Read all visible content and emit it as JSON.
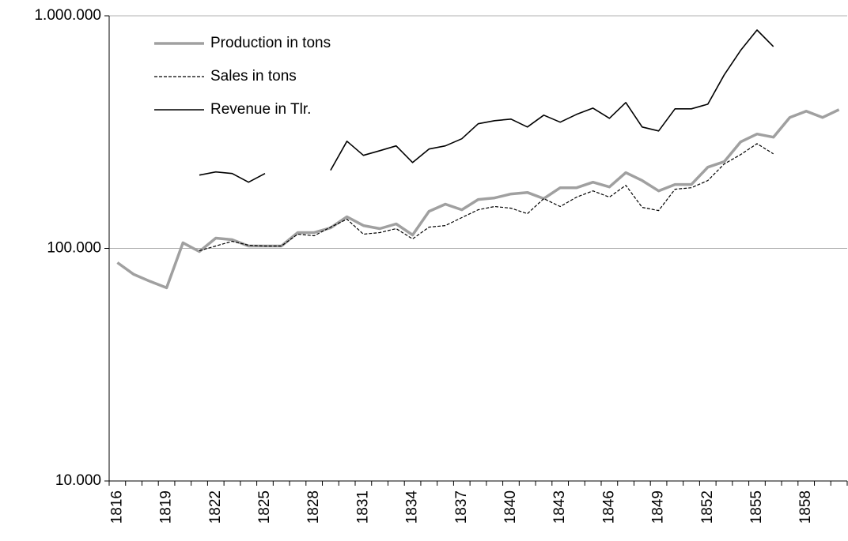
{
  "chart_data": {
    "type": "line",
    "log_scale": true,
    "grid": true,
    "legend": "top-left",
    "categories": [
      1816,
      null,
      null,
      1819,
      null,
      null,
      1822,
      null,
      null,
      1825,
      null,
      null,
      1828,
      null,
      null,
      1831,
      null,
      null,
      1834,
      null,
      null,
      1837,
      null,
      null,
      1840,
      null,
      null,
      1843,
      null,
      null,
      1846,
      null,
      null,
      1849,
      null,
      null,
      1852,
      null,
      null,
      1855,
      null,
      null,
      1858,
      null,
      null
    ],
    "ylim": [
      10000,
      1000000
    ],
    "yticks": [
      {
        "value": 10000,
        "label": "10.000"
      },
      {
        "value": 100000,
        "label": "100.000"
      },
      {
        "value": 1000000,
        "label": "1.000.000"
      }
    ],
    "series": [
      {
        "name": "Production in tons",
        "color": "#a0a0a0",
        "style": "solid",
        "values": [
          86900,
          77300,
          72100,
          67700,
          105700,
          96900,
          110700,
          109000,
          102400,
          102400,
          102400,
          116900,
          117000,
          122500,
          136700,
          125400,
          121600,
          127400,
          114200,
          144300,
          154900,
          146600,
          162300,
          164800,
          171400,
          174000,
          163600,
          182300,
          182300,
          192600,
          183800,
          211600,
          195700,
          176700,
          188200,
          188200,
          223400,
          236000,
          287000,
          310300,
          300700,
          365500,
          388900,
          365500,
          395000
        ]
      },
      {
        "name": "Sales in tons",
        "color": "#000000",
        "style": "dashed",
        "values": [
          null,
          null,
          null,
          null,
          null,
          97700,
          102400,
          107300,
          103200,
          102400,
          102400,
          115100,
          113300,
          123400,
          133500,
          115100,
          116900,
          121600,
          109800,
          123400,
          125400,
          135600,
          146600,
          151300,
          148900,
          141000,
          163600,
          151300,
          166100,
          176700,
          166100,
          186700,
          150100,
          145400,
          179600,
          182300,
          195700,
          230600,
          253000,
          282000,
          255000,
          null,
          null,
          null,
          null
        ]
      },
      {
        "name": "Revenue in Tlr.",
        "color": "#000000",
        "style": "solid",
        "values": [
          null,
          null,
          null,
          null,
          null,
          206600,
          213200,
          209900,
          192600,
          209900,
          null,
          null,
          null,
          216600,
          289000,
          251200,
          263000,
          276000,
          234000,
          267300,
          276000,
          296000,
          343400,
          354100,
          359700,
          332700,
          374100,
          348700,
          376900,
          401000,
          362500,
          423700,
          332700,
          319900,
          398100,
          398100,
          416900,
          557000,
          709600,
          868800,
          737800,
          null,
          null,
          null,
          null
        ]
      }
    ]
  }
}
